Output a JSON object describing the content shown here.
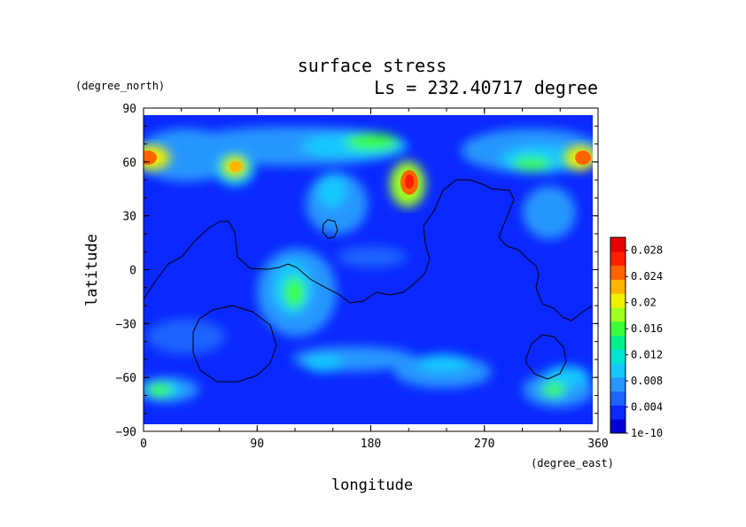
{
  "chart_data": {
    "type": "heatmap",
    "title": "surface stress",
    "subtitle": "Ls = 232.40717 degree",
    "xlabel": "longitude",
    "ylabel": "latitude",
    "x_unit": "(degree_east)",
    "y_unit": "(degree_north)",
    "xlim": [
      0,
      360
    ],
    "ylim": [
      -90,
      90
    ],
    "xticks": [
      "0",
      "90",
      "180",
      "270",
      "360"
    ],
    "yticks": [
      "90",
      "60",
      "30",
      "0",
      "−30",
      "−60",
      "−90"
    ],
    "xtick_values": [
      0,
      90,
      180,
      270,
      360
    ],
    "ytick_values": [
      90,
      60,
      30,
      0,
      -30,
      -60,
      -90
    ],
    "colorbar": {
      "labels": [
        "0.028",
        "0.024",
        "0.02",
        "0.016",
        "0.012",
        "0.008",
        "0.004",
        "1e-10"
      ],
      "values": [
        0.028,
        0.024,
        0.02,
        0.016,
        0.012,
        0.008,
        0.004,
        1e-10
      ],
      "min": 1e-10,
      "max": 0.03,
      "colors": [
        "#0000d8",
        "#0a28ff",
        "#1e64ff",
        "#2896ff",
        "#14c8ff",
        "#00e6d2",
        "#00f08c",
        "#3cff3c",
        "#a0ff1e",
        "#f0f000",
        "#ffb400",
        "#ff6400",
        "#ff1e00",
        "#e60000"
      ]
    },
    "field_description_blobs": [
      {
        "lon": 2,
        "lat": 64,
        "value": 0.026
      },
      {
        "lon": 74,
        "lat": 58,
        "value": 0.022
      },
      {
        "lon": 210,
        "lat": 50,
        "value": 0.026
      },
      {
        "lon": 190,
        "lat": 68,
        "value": 0.016
      },
      {
        "lon": 355,
        "lat": 64,
        "value": 0.024
      },
      {
        "lon": 315,
        "lat": 66,
        "value": 0.016
      },
      {
        "lon": 120,
        "lat": -18,
        "value": 0.016
      },
      {
        "lon": 18,
        "lat": -67,
        "value": 0.016
      },
      {
        "lon": 320,
        "lat": -68,
        "value": 0.016
      }
    ]
  }
}
